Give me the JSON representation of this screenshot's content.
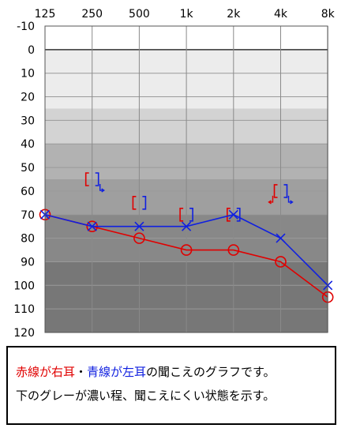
{
  "chart_data": {
    "type": "line",
    "title": "",
    "xlabel": "",
    "ylabel": "",
    "x_ticks": [
      "125",
      "250",
      "500",
      "1k",
      "2k",
      "4k",
      "8k"
    ],
    "y_ticks": [
      -10,
      0,
      10,
      20,
      30,
      40,
      50,
      60,
      70,
      80,
      90,
      100,
      110,
      120
    ],
    "ylim": [
      -10,
      120
    ],
    "y_inverted": true,
    "grid": true,
    "series": [
      {
        "id": "right-ear",
        "color": "#e00000",
        "marker": "circle",
        "x": [
          "125",
          "250",
          "500",
          "1k",
          "2k",
          "4k",
          "8k"
        ],
        "values": [
          70,
          75,
          80,
          85,
          85,
          90,
          105
        ]
      },
      {
        "id": "left-ear",
        "color": "#1020e0",
        "marker": "cross",
        "x": [
          "125",
          "250",
          "500",
          "1k",
          "2k",
          "4k",
          "8k"
        ],
        "values": [
          70,
          75,
          75,
          75,
          70,
          80,
          100
        ]
      }
    ],
    "masked_bone_conduction": [
      {
        "x": "250",
        "right": 55,
        "left": 55,
        "right_arrow": false,
        "left_arrow": true
      },
      {
        "x": "500",
        "right": 65,
        "left": 65,
        "right_arrow": false,
        "left_arrow": false
      },
      {
        "x": "1k",
        "right": 70,
        "left": 70,
        "right_arrow": false,
        "left_arrow": false
      },
      {
        "x": "2k",
        "right": 70,
        "left": 70,
        "right_arrow": false,
        "left_arrow": false
      },
      {
        "x": "4k",
        "right": 60,
        "left": 60,
        "right_arrow": true,
        "left_arrow": true
      }
    ],
    "bands": [
      {
        "from": 0,
        "to": 25,
        "color": "#ececec"
      },
      {
        "from": 25,
        "to": 40,
        "color": "#d3d3d3"
      },
      {
        "from": 40,
        "to": 55,
        "color": "#b2b2b2"
      },
      {
        "from": 55,
        "to": 70,
        "color": "#9f9f9f"
      },
      {
        "from": 70,
        "to": 90,
        "color": "#888888"
      },
      {
        "from": 90,
        "to": 120,
        "color": "#777777"
      }
    ]
  },
  "caption": {
    "line1_part1": "赤線が右耳",
    "line1_part2": "・",
    "line1_part3": "青線が左耳",
    "line1_part4": "の聞こえのグラフです。",
    "line2": "下のグレーが濃い程、聞こえにくい状態を示す。"
  }
}
